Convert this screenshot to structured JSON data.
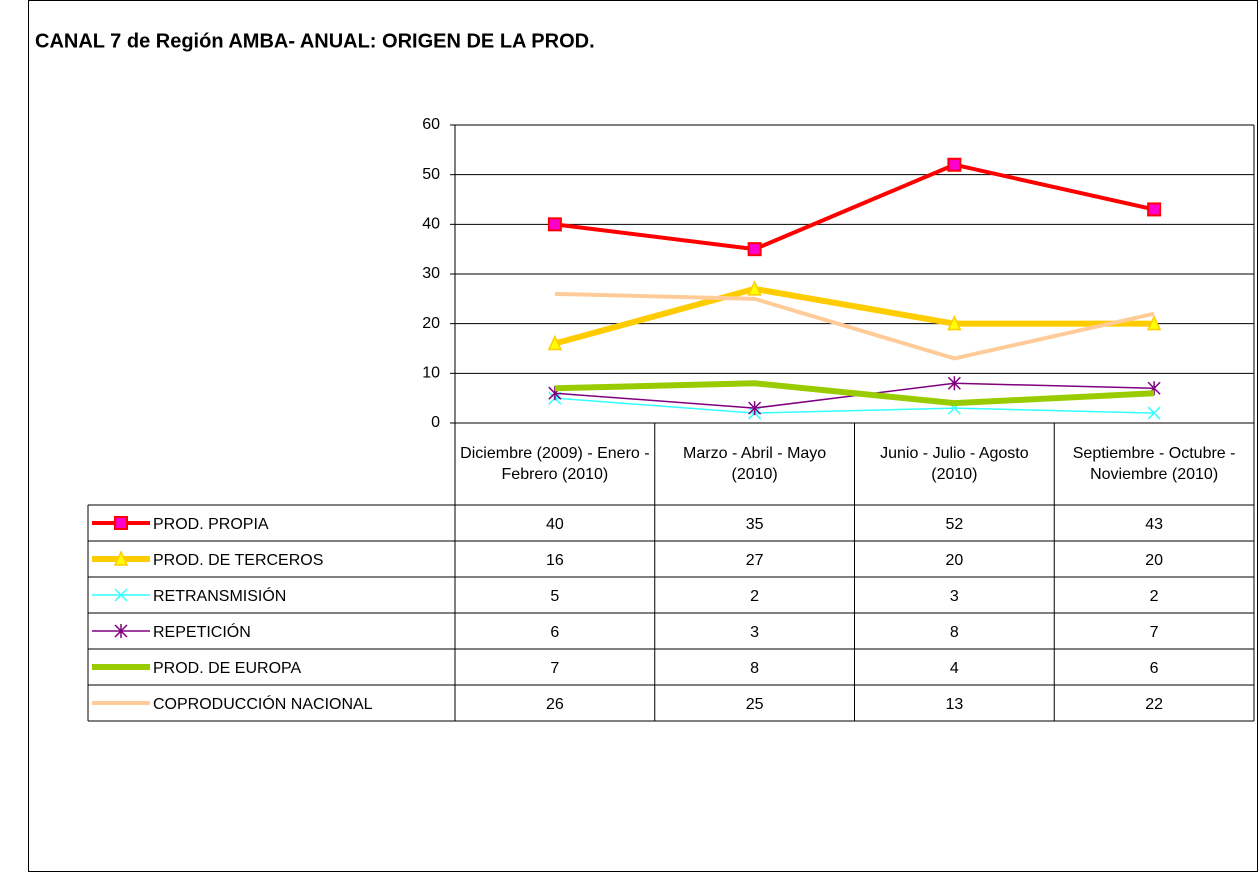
{
  "chart_data": {
    "type": "line",
    "title": "CANAL 7 de Región AMBA- ANUAL: ORIGEN DE LA PROD.",
    "categories": [
      "Diciembre (2009) - Enero - Febrero (2010)",
      "Marzo - Abril - Mayo (2010)",
      "Junio - Julio - Agosto (2010)",
      "Septiembre - Octubre - Noviembre (2010)"
    ],
    "series": [
      {
        "name": "PROD. PROPIA",
        "color": "#ff0000",
        "marker": "square",
        "values": [
          40,
          35,
          52,
          43
        ]
      },
      {
        "name": "PROD. DE TERCEROS",
        "color": "#ffcc00",
        "marker": "triangle",
        "values": [
          16,
          27,
          20,
          20
        ]
      },
      {
        "name": "RETRANSMISIÓN",
        "color": "#33ffff",
        "marker": "x",
        "values": [
          5,
          2,
          3,
          2
        ]
      },
      {
        "name": "REPETICIÓN",
        "color": "#800080",
        "marker": "star",
        "values": [
          6,
          3,
          8,
          7
        ]
      },
      {
        "name": "PROD. DE EUROPA",
        "color": "#99cc00",
        "marker": "none",
        "values": [
          7,
          8,
          4,
          6
        ]
      },
      {
        "name": "COPRODUCCIÓN NACIONAL",
        "color": "#ffcc99",
        "marker": "none",
        "values": [
          26,
          25,
          13,
          22
        ]
      }
    ],
    "ylim": [
      0,
      60
    ],
    "yticks": [
      0,
      10,
      20,
      30,
      40,
      50,
      60
    ],
    "grid": true
  }
}
